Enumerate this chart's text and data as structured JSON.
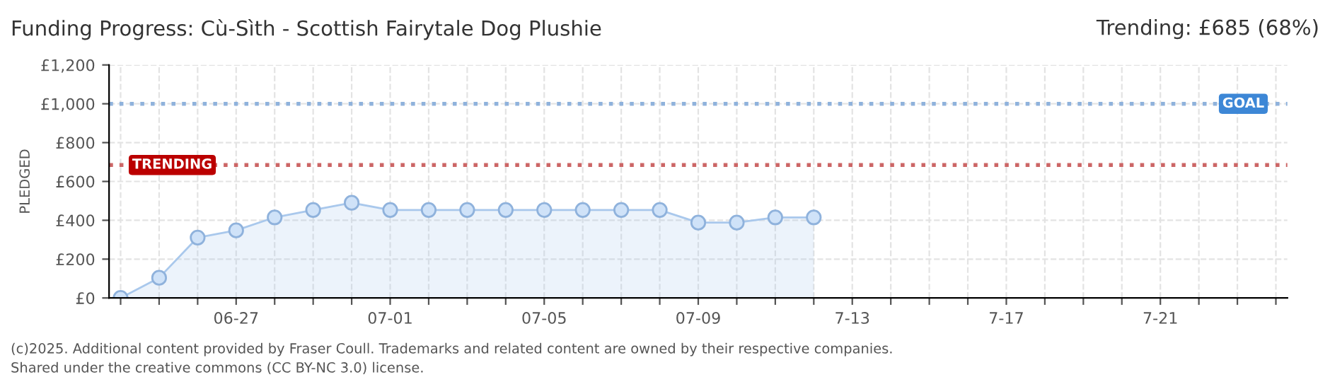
{
  "chart_data": {
    "type": "area",
    "title": "Funding Progress: Cù-Sìth - Scottish Fairytale Dog Plushie",
    "subtitle": "Trending: £685 (68%)",
    "ylabel": "PLEDGED",
    "categories": [
      null,
      null,
      null,
      "06-27",
      null,
      null,
      null,
      "07-01",
      null,
      null,
      null,
      "07-05",
      null,
      null,
      null,
      "07-09",
      null,
      null,
      null,
      "7-13",
      null,
      null,
      null,
      "7-17",
      null,
      null,
      null,
      "7-21",
      null,
      null,
      null
    ],
    "series": [
      {
        "color": "#a9c8ec",
        "values": [
          0,
          104,
          311,
          348,
          415,
          453,
          490,
          453,
          453,
          453,
          453,
          453,
          453,
          453,
          453,
          388,
          388,
          415,
          415,
          null,
          null,
          null,
          null,
          null,
          null,
          null,
          null,
          null,
          null,
          null,
          null
        ]
      }
    ],
    "marker": "circle",
    "grid": true,
    "ylim": [
      0,
      1200
    ],
    "yticks": [
      {
        "value": 0,
        "label": "£0"
      },
      {
        "value": 200,
        "label": "£200"
      },
      {
        "value": 400,
        "label": "£400"
      },
      {
        "value": 600,
        "label": "£600"
      },
      {
        "value": 800,
        "label": "£800"
      },
      {
        "value": 1000,
        "label": "£1,000"
      },
      {
        "value": 1200,
        "label": "£1,200"
      }
    ],
    "ref_lines": [
      {
        "axis": "y",
        "value": 1000,
        "label": "GOAL",
        "color": "#8fb2dc",
        "line_style": "dotted"
      },
      {
        "axis": "y",
        "value": 685,
        "label": "TRENDING",
        "color": "#cc6666",
        "line_style": "dotted"
      }
    ],
    "annotations": [
      "(c)2025. Additional content provided by Fraser Coull. Trademarks and related content are owned by their respective companies.",
      "Shared under the creative commons (CC BY-NC 3.0) license."
    ]
  }
}
